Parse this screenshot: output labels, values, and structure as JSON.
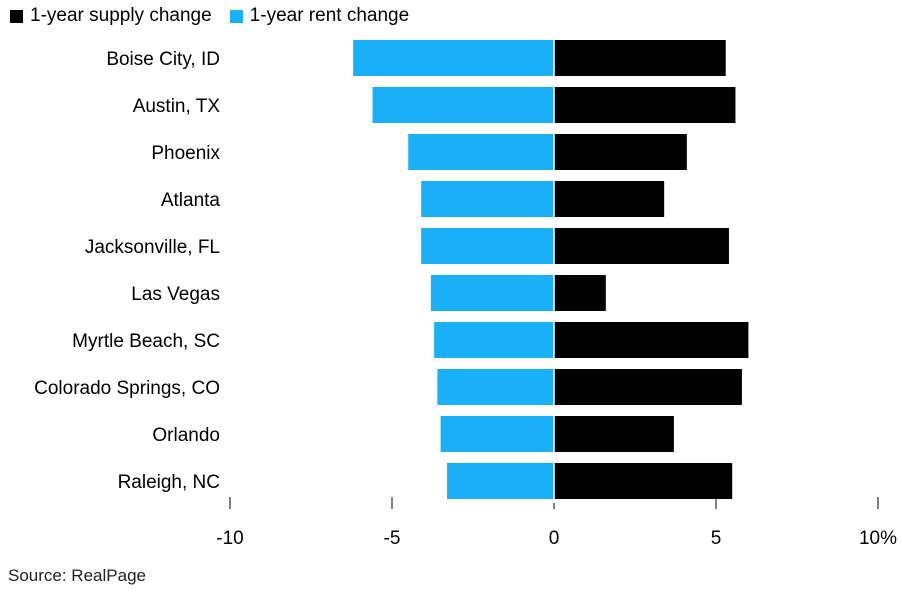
{
  "chart_data": {
    "type": "bar",
    "orientation": "horizontal",
    "categories": [
      "Boise City, ID",
      "Austin, TX",
      "Phoenix",
      "Atlanta",
      "Jacksonville, FL",
      "Las Vegas",
      "Myrtle Beach, SC",
      "Colorado Springs, CO",
      "Orlando",
      "Raleigh, NC"
    ],
    "series": [
      {
        "name": "1-year supply change",
        "color": "#000000",
        "values": [
          5.3,
          5.6,
          4.1,
          3.4,
          5.4,
          1.6,
          6.0,
          5.8,
          3.7,
          5.5
        ]
      },
      {
        "name": "1-year rent change",
        "color": "#1ab0f7",
        "values": [
          -6.2,
          -5.6,
          -4.5,
          -4.1,
          -4.1,
          -3.8,
          -3.7,
          -3.6,
          -3.5,
          -3.3
        ]
      }
    ],
    "xlim": [
      -10,
      10
    ],
    "xticks": [
      -10,
      -5,
      0,
      5,
      10
    ],
    "xtick_labels": [
      "-10",
      "-5",
      "0",
      "5",
      "10%"
    ],
    "legend": "top-left",
    "grid": false
  },
  "source": "Source: RealPage"
}
